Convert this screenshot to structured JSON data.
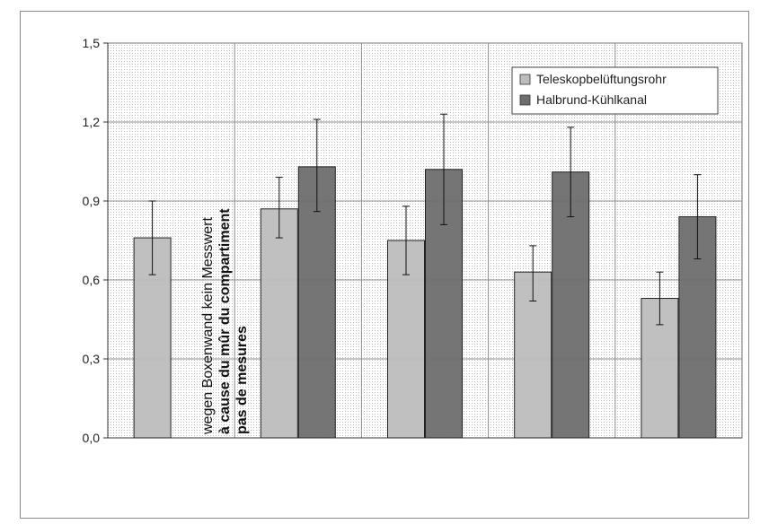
{
  "chart_data": {
    "type": "bar",
    "title": "",
    "xlabel": "",
    "ylabel": "",
    "ylim": [
      0,
      1.5
    ],
    "y_ticks": [
      "0,0",
      "0,3",
      "0,6",
      "0,9",
      "1,2",
      "1,5"
    ],
    "y_tick_values": [
      0,
      0.3,
      0.6,
      0.9,
      1.2,
      1.5
    ],
    "grid": true,
    "legend_position": "top-right",
    "categories": [
      "",
      "",
      "",
      "",
      ""
    ],
    "series": [
      {
        "name": "Teleskopbelüftungsrohr",
        "color": "#bdbdbd",
        "values": [
          0.76,
          0.87,
          0.75,
          0.63,
          0.53
        ],
        "err_low": [
          0.62,
          0.76,
          0.62,
          0.52,
          0.43
        ],
        "err_high": [
          0.9,
          0.99,
          0.88,
          0.73,
          0.63
        ]
      },
      {
        "name": "Halbrund-Kühlkanal",
        "color": "#6e6e6e",
        "values": [
          null,
          1.03,
          1.02,
          1.01,
          0.84
        ],
        "err_low": [
          null,
          0.86,
          0.81,
          0.84,
          0.68
        ],
        "err_high": [
          null,
          1.21,
          1.23,
          1.18,
          1.0
        ]
      }
    ],
    "annotation": {
      "line1": "wegen Boxenwand kein Messwert",
      "line2": "à cause du mûr du compartiment",
      "line3": "pas de mesures"
    }
  }
}
